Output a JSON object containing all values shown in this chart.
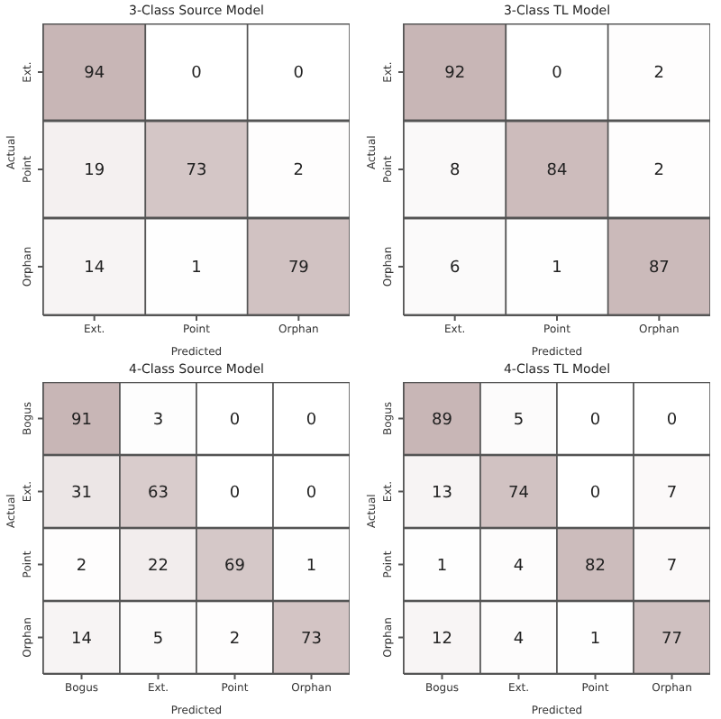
{
  "chart_data": [
    {
      "type": "heatmap",
      "title": "3-Class Source Model",
      "xlabel": "Predicted",
      "ylabel": "Actual",
      "categories": [
        "Ext.",
        "Point",
        "Orphan"
      ],
      "y_categories": [
        "Ext.",
        "Point",
        "Orphan"
      ],
      "color": "#c8b6b6",
      "data_labels": true,
      "cells": [
        [
          94,
          0,
          0
        ],
        [
          19,
          73,
          2
        ],
        [
          14,
          1,
          79
        ]
      ]
    },
    {
      "type": "heatmap",
      "title": "3-Class TL Model",
      "xlabel": "Predicted",
      "ylabel": "Actual",
      "categories": [
        "Ext.",
        "Point",
        "Orphan"
      ],
      "y_categories": [
        "Ext.",
        "Point",
        "Orphan"
      ],
      "color": "#c8b6b6",
      "data_labels": true,
      "cells": [
        [
          92,
          0,
          2
        ],
        [
          8,
          84,
          2
        ],
        [
          6,
          1,
          87
        ]
      ]
    },
    {
      "type": "heatmap",
      "title": "4-Class Source Model",
      "xlabel": "Predicted",
      "ylabel": "Actual",
      "categories": [
        "Bogus",
        "Ext.",
        "Point",
        "Orphan"
      ],
      "y_categories": [
        "Bogus",
        "Ext.",
        "Point",
        "Orphan"
      ],
      "color": "#c8b6b6",
      "data_labels": true,
      "cells": [
        [
          91,
          3,
          0,
          0
        ],
        [
          31,
          63,
          0,
          0
        ],
        [
          2,
          22,
          69,
          1
        ],
        [
          14,
          5,
          2,
          73
        ]
      ]
    },
    {
      "type": "heatmap",
      "title": "4-Class TL Model",
      "xlabel": "Predicted",
      "ylabel": "Actual",
      "categories": [
        "Bogus",
        "Ext.",
        "Point",
        "Orphan"
      ],
      "y_categories": [
        "Bogus",
        "Ext.",
        "Point",
        "Orphan"
      ],
      "color": "#c8b6b6",
      "data_labels": true,
      "cells": [
        [
          89,
          5,
          0,
          0
        ],
        [
          13,
          74,
          0,
          7
        ],
        [
          1,
          4,
          82,
          7
        ],
        [
          12,
          4,
          1,
          77
        ]
      ]
    }
  ]
}
